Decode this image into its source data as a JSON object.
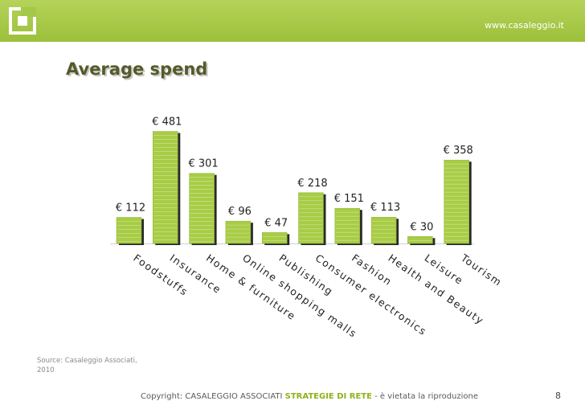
{
  "header": {
    "site_url": "www.casaleggio.it",
    "logo_icon": "casaleggio-logo-icon"
  },
  "title": "Average spend",
  "chart_data": {
    "type": "bar",
    "title": "Average spend",
    "categories": [
      "Foodstuffs",
      "Insurance",
      "Home & furniture",
      "Online shopping malls",
      "Publishing",
      "Consumer electronics",
      "Fashion",
      "Health and Beauty",
      "Leisure",
      "Tourism"
    ],
    "values": [
      112,
      481,
      301,
      96,
      47,
      218,
      151,
      113,
      30,
      358
    ],
    "value_labels": [
      "€ 112",
      "€ 481",
      "€ 301",
      "€ 96",
      "€ 47",
      "€ 218",
      "€ 151",
      "€ 113",
      "€ 30",
      "€ 358"
    ],
    "ylim": [
      0,
      500
    ],
    "xlabel": "",
    "ylabel": "",
    "grid": false,
    "legend": "none",
    "bar_color": "#a8cc45"
  },
  "source": "Source: Casaleggio Associati, 2010",
  "footer": {
    "copyright_prefix": "Copyright: CASALEGGIO ASSOCIATI",
    "brand": "STRATEGIE DI RETE",
    "copyright_suffix": "- è vietata la riproduzione",
    "page_number": "8"
  },
  "colors": {
    "header": "#9cc03a",
    "title": "#555a28",
    "accent": "#8cb21c"
  }
}
